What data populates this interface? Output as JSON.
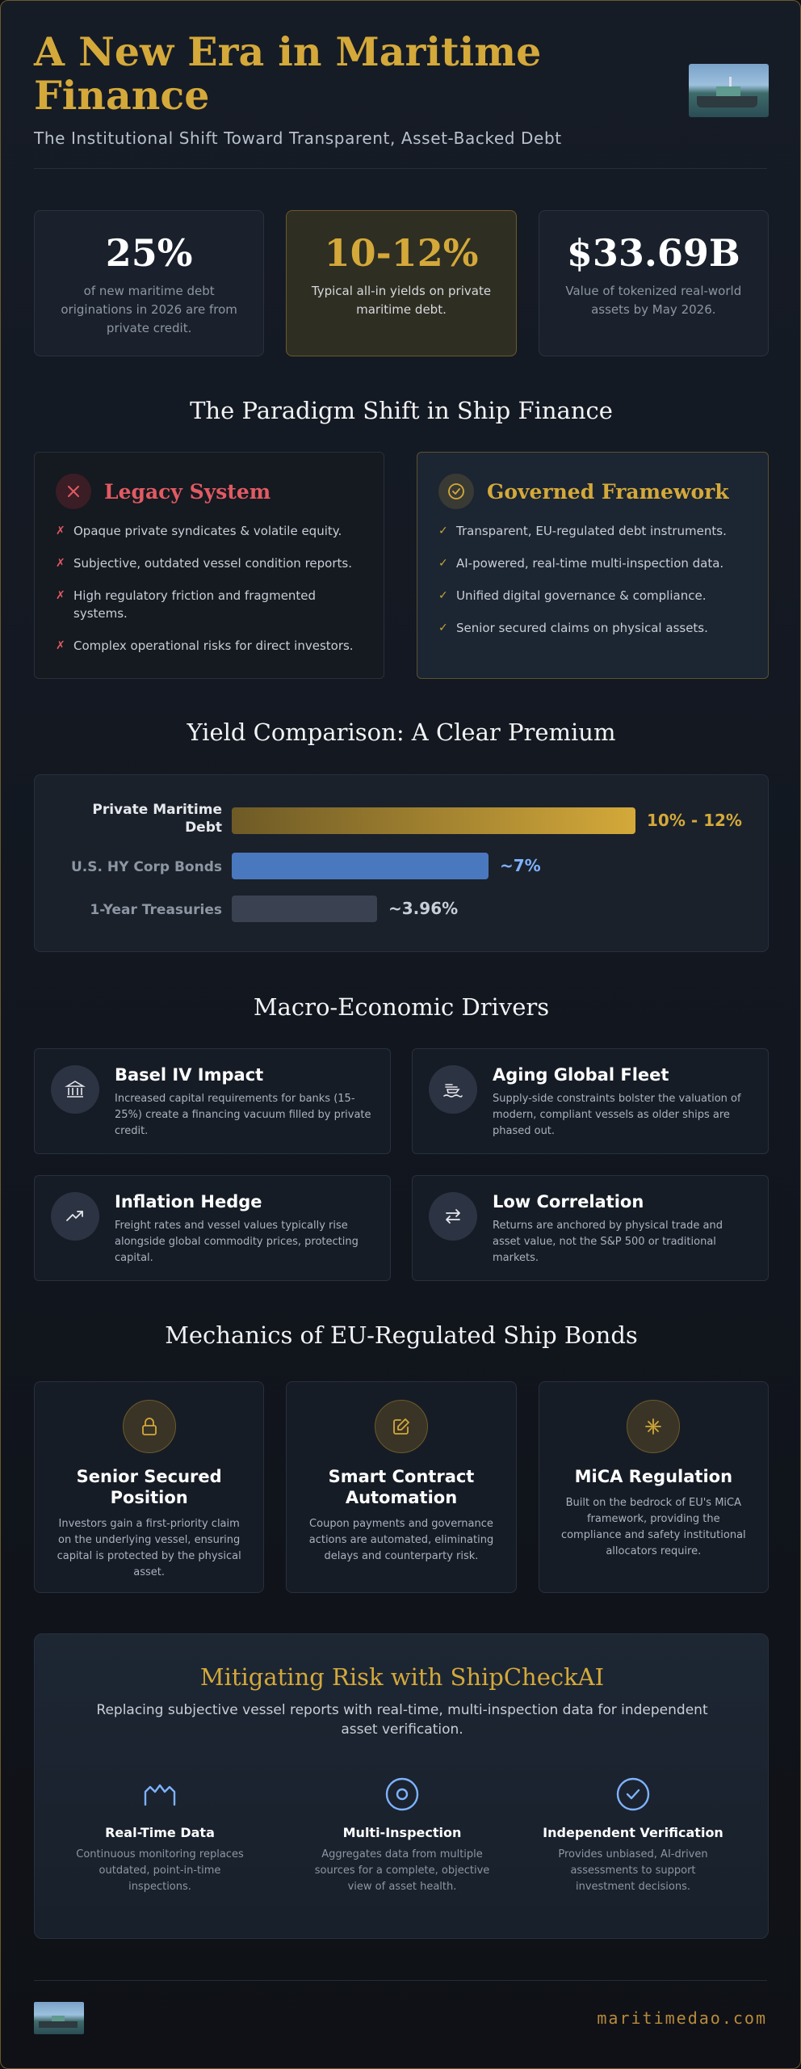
{
  "header": {
    "title": "A New Era in Maritime Finance",
    "subtitle": "The Institutional Shift Toward Transparent, Asset-Backed Debt"
  },
  "stats": [
    {
      "value": "25%",
      "desc": "of new maritime debt originations in 2026 are from private credit."
    },
    {
      "value": "10-12%",
      "desc": "Typical all-in yields on private maritime debt."
    },
    {
      "value": "$33.69B",
      "desc": "Value of tokenized real-world assets by May 2026."
    }
  ],
  "paradigm": {
    "title": "The Paradigm Shift in Ship Finance",
    "legacy": {
      "title": "Legacy System",
      "items": [
        "Opaque private syndicates & volatile equity.",
        "Subjective, outdated vessel condition reports.",
        "High regulatory friction and fragmented systems.",
        "Complex operational risks for direct investors."
      ]
    },
    "governed": {
      "title": "Governed Framework",
      "items": [
        "Transparent, EU-regulated debt instruments.",
        "AI-powered, real-time multi-inspection data.",
        "Unified digital governance & compliance.",
        "Senior secured claims on physical assets."
      ]
    }
  },
  "yield": {
    "title": "Yield Comparison: A Clear Premium",
    "rows": [
      {
        "label": "Private Maritime Debt",
        "value": "10% - 12%",
        "level": 11,
        "color": "#d4a93a"
      },
      {
        "label": "U.S. HY Corp Bonds",
        "value": "~7%",
        "level": 7,
        "color": "#4a78bf"
      },
      {
        "label": "1-Year Treasuries",
        "value": "~3.96%",
        "level": 3.96,
        "color": "#3a4150"
      }
    ]
  },
  "drivers": {
    "title": "Macro-Economic Drivers",
    "items": [
      {
        "title": "Basel IV Impact",
        "desc": "Increased capital requirements for banks (15-25%) create a financing vacuum filled by private credit.",
        "icon": "bank-icon"
      },
      {
        "title": "Aging Global Fleet",
        "desc": "Supply-side constraints bolster the valuation of modern, compliant vessels as older ships are phased out.",
        "icon": "ship-icon"
      },
      {
        "title": "Inflation Hedge",
        "desc": "Freight rates and vessel values typically rise alongside global commodity prices, protecting capital.",
        "icon": "trending-up-icon"
      },
      {
        "title": "Low Correlation",
        "desc": "Returns are anchored by physical trade and asset value, not the S&P 500 or traditional markets.",
        "icon": "arrows-swap-icon"
      }
    ]
  },
  "mechanics": {
    "title": "Mechanics of EU-Regulated Ship Bonds",
    "items": [
      {
        "title": "Senior Secured Position",
        "desc": "Investors gain a first-priority claim on the underlying vessel, ensuring capital is protected by the physical asset.",
        "icon": "lock-icon"
      },
      {
        "title": "Smart Contract Automation",
        "desc": "Coupon payments and governance actions are automated, eliminating delays and counterparty risk.",
        "icon": "edit-icon"
      },
      {
        "title": "MiCA Regulation",
        "desc": "Built on the bedrock of EU's MiCA framework, providing the compliance and safety institutional allocators require.",
        "icon": "asterisk-icon"
      }
    ]
  },
  "risk": {
    "title": "Mitigating Risk with ShipCheckAI",
    "subtitle": "Replacing subjective vessel reports with real-time, multi-inspection data for independent asset verification.",
    "items": [
      {
        "title": "Real-Time Data",
        "desc": "Continuous monitoring replaces outdated, point-in-time inspections.",
        "icon": "pulse-icon"
      },
      {
        "title": "Multi-Inspection",
        "desc": "Aggregates data from multiple sources for a complete, objective view of asset health.",
        "icon": "target-icon"
      },
      {
        "title": "Independent Verification",
        "desc": "Provides unbiased, AI-driven assessments to support investment decisions.",
        "icon": "check-circle-icon"
      }
    ]
  },
  "footer": {
    "link": "maritimedao.com"
  },
  "colors": {
    "accent": "#d4a93a",
    "danger": "#e25a62",
    "blue": "#4a78bf",
    "background": "#121720"
  }
}
